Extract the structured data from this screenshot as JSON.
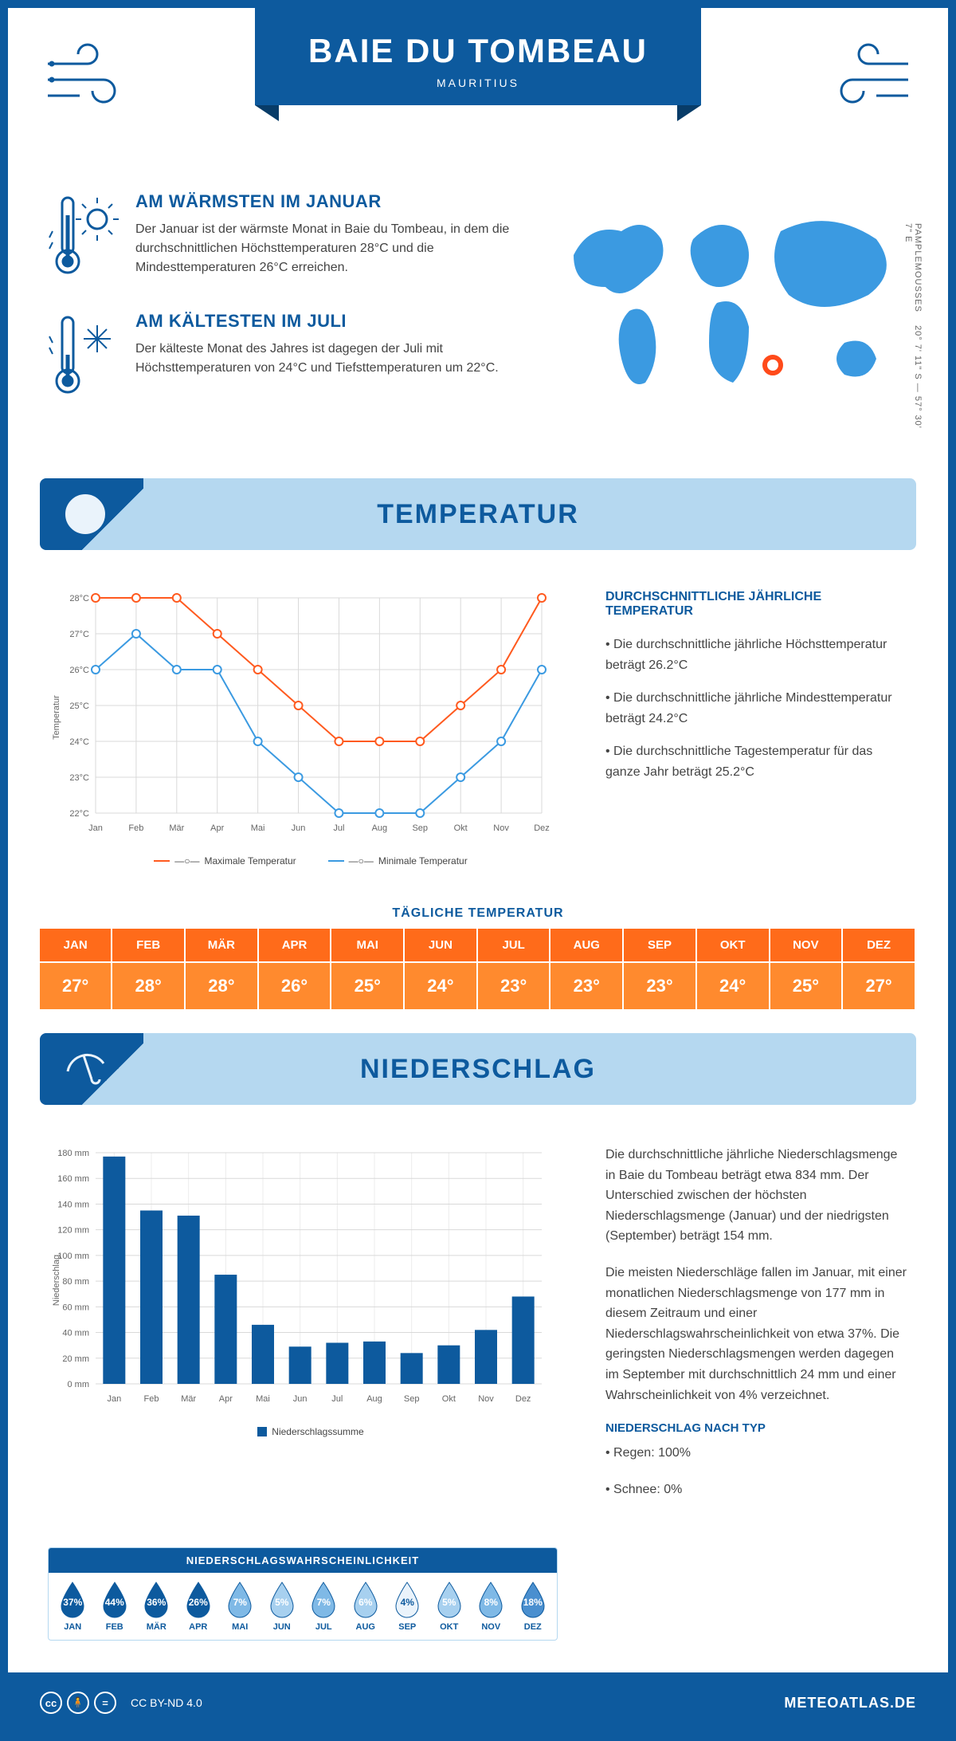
{
  "header": {
    "title": "BAIE DU TOMBEAU",
    "country": "MAURITIUS"
  },
  "coords": {
    "region": "PAMPLEMOUSSES",
    "lat": "20° 7' 11\" S",
    "lon": "57° 30' 7\" E"
  },
  "warmest": {
    "title": "AM WÄRMSTEN IM JANUAR",
    "text": "Der Januar ist der wärmste Monat in Baie du Tombeau, in dem die durchschnittlichen Höchsttemperaturen 28°C und die Mindesttemperaturen 26°C erreichen."
  },
  "coldest": {
    "title": "AM KÄLTESTEN IM JULI",
    "text": "Der kälteste Monat des Jahres ist dagegen der Juli mit Höchsttemperaturen von 24°C und Tiefsttemperaturen um 22°C."
  },
  "sections": {
    "temperature": "TEMPERATUR",
    "precipitation": "NIEDERSCHLAG"
  },
  "months": [
    "Jan",
    "Feb",
    "Mär",
    "Apr",
    "Mai",
    "Jun",
    "Jul",
    "Aug",
    "Sep",
    "Okt",
    "Nov",
    "Dez"
  ],
  "months_upper": [
    "JAN",
    "FEB",
    "MÄR",
    "APR",
    "MAI",
    "JUN",
    "JUL",
    "AUG",
    "SEP",
    "OKT",
    "NOV",
    "DEZ"
  ],
  "temp_chart": {
    "type": "line",
    "ylabel": "Temperatur",
    "ylim": [
      22,
      28
    ],
    "ytick_step": 1,
    "max_series": {
      "label": "Maximale Temperatur",
      "color": "#ff5a1f",
      "values": [
        28,
        28,
        28,
        27,
        26,
        25,
        24,
        24,
        24,
        25,
        26,
        28
      ]
    },
    "min_series": {
      "label": "Minimale Temperatur",
      "color": "#3b9ae1",
      "values": [
        26,
        27,
        26,
        26,
        24,
        23,
        22,
        22,
        22,
        23,
        24,
        26
      ]
    },
    "grid_color": "#d9d9d9",
    "marker": "circle",
    "marker_size": 5,
    "line_width": 2
  },
  "temp_info": {
    "title": "DURCHSCHNITTLICHE JÄHRLICHE TEMPERATUR",
    "b1": "• Die durchschnittliche jährliche Höchsttemperatur beträgt 26.2°C",
    "b2": "• Die durchschnittliche jährliche Mindesttemperatur beträgt 24.2°C",
    "b3": "• Die durchschnittliche Tagestemperatur für das ganze Jahr beträgt 25.2°C"
  },
  "daily_temp": {
    "title": "TÄGLICHE TEMPERATUR",
    "values": [
      "27°",
      "28°",
      "28°",
      "26°",
      "25°",
      "24°",
      "23°",
      "23°",
      "23°",
      "24°",
      "25°",
      "27°"
    ],
    "header_bg": "#ff6b1a",
    "value_bg": "#ff8a2e"
  },
  "precip_chart": {
    "type": "bar",
    "ylabel": "Niederschlag",
    "ymax": 180,
    "ytick_step": 20,
    "values": [
      177,
      135,
      131,
      85,
      46,
      29,
      32,
      33,
      24,
      30,
      42,
      68
    ],
    "bar_color": "#0d5a9e",
    "grid_color": "#d9d9d9",
    "legend": "Niederschlagssumme"
  },
  "precip_info": {
    "p1": "Die durchschnittliche jährliche Niederschlagsmenge in Baie du Tombeau beträgt etwa 834 mm. Der Unterschied zwischen der höchsten Niederschlagsmenge (Januar) und der niedrigsten (September) beträgt 154 mm.",
    "p2": "Die meisten Niederschläge fallen im Januar, mit einer monatlichen Niederschlagsmenge von 177 mm in diesem Zeitraum und einer Niederschlagswahrscheinlichkeit von etwa 37%. Die geringsten Niederschlagsmengen werden dagegen im September mit durchschnittlich 24 mm und einer Wahrscheinlichkeit von 4% verzeichnet.",
    "type_title": "NIEDERSCHLAG NACH TYP",
    "type_rain": "• Regen: 100%",
    "type_snow": "• Schnee: 0%"
  },
  "precip_prob": {
    "title": "NIEDERSCHLAGSWAHRSCHEINLICHKEIT",
    "values": [
      37,
      44,
      36,
      26,
      7,
      5,
      7,
      6,
      4,
      5,
      8,
      18
    ],
    "colors": [
      "#0d5a9e",
      "#0d5a9e",
      "#0d5a9e",
      "#0d5a9e",
      "#7fb9e6",
      "#a7d0ef",
      "#7fb9e6",
      "#a7d0ef",
      "#eaf3fb",
      "#a7d0ef",
      "#7fb9e6",
      "#4a8fcf"
    ]
  },
  "footer": {
    "license": "CC BY-ND 4.0",
    "brand": "METEOATLAS.DE"
  },
  "colors": {
    "primary": "#0d5a9e",
    "light": "#b5d8f0",
    "orange": "#ff6b1a"
  }
}
